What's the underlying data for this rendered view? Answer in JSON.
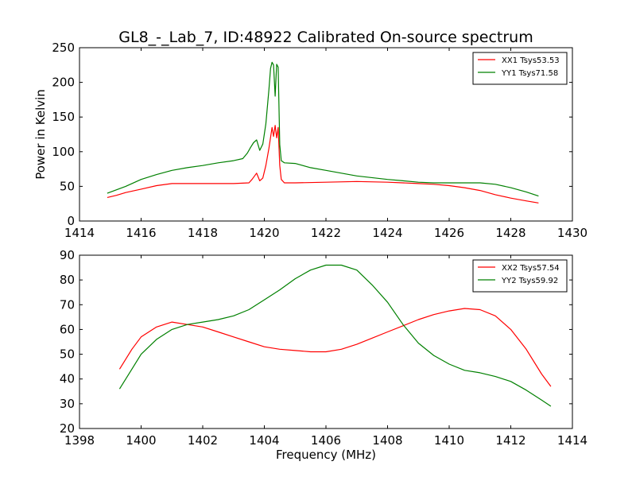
{
  "figure": {
    "title": "GL8_-_Lab_7, ID:48922 Calibrated On-source spectrum"
  },
  "chart_data": [
    {
      "type": "line",
      "title": "",
      "xlabel": "",
      "ylabel": "Power in Kelvin",
      "xlim": [
        1414,
        1430
      ],
      "ylim": [
        0,
        250
      ],
      "xticks": [
        "1414",
        "1416",
        "1418",
        "1420",
        "1422",
        "1424",
        "1426",
        "1428",
        "1430"
      ],
      "yticks": [
        "0",
        "50",
        "100",
        "150",
        "200",
        "250"
      ],
      "grid": false,
      "legend_position": "top-right",
      "series": [
        {
          "name": "XX1 Tsys53.53",
          "color": "#ff0000",
          "x": [
            1414.9,
            1415.2,
            1415.5,
            1416.0,
            1416.5,
            1417.0,
            1418.0,
            1419.0,
            1419.5,
            1419.6,
            1419.75,
            1419.85,
            1419.95,
            1420.05,
            1420.15,
            1420.25,
            1420.3,
            1420.35,
            1420.4,
            1420.45,
            1420.5,
            1420.55,
            1420.65,
            1421.0,
            1422.0,
            1423.0,
            1424.0,
            1424.5,
            1425.0,
            1425.5,
            1426.0,
            1426.5,
            1427.0,
            1427.5,
            1428.0,
            1428.5,
            1428.9
          ],
          "y": [
            34,
            37,
            41,
            46,
            51,
            54,
            54,
            54,
            55,
            60,
            69,
            58,
            62,
            80,
            105,
            135,
            122,
            138,
            120,
            135,
            80,
            60,
            55,
            55,
            56,
            57,
            56,
            55,
            54,
            53,
            51,
            48,
            44,
            38,
            33,
            29,
            26
          ]
        },
        {
          "name": "YY1 Tsys71.58",
          "color": "#008000",
          "x": [
            1414.9,
            1415.5,
            1416.0,
            1416.5,
            1417.0,
            1417.5,
            1418.0,
            1418.5,
            1419.0,
            1419.3,
            1419.45,
            1419.55,
            1419.65,
            1419.75,
            1419.85,
            1419.95,
            1420.05,
            1420.15,
            1420.2,
            1420.25,
            1420.3,
            1420.35,
            1420.4,
            1420.45,
            1420.5,
            1420.55,
            1420.65,
            1421.0,
            1421.5,
            1422.0,
            1423.0,
            1424.0,
            1424.5,
            1425.0,
            1425.5,
            1426.0,
            1426.5,
            1427.0,
            1427.5,
            1428.0,
            1428.5,
            1428.9
          ],
          "y": [
            40,
            50,
            60,
            67,
            73,
            77,
            80,
            84,
            87,
            90,
            98,
            106,
            113,
            117,
            102,
            111,
            140,
            190,
            220,
            229,
            225,
            180,
            226,
            222,
            110,
            87,
            84,
            83,
            77,
            73,
            65,
            60,
            58,
            56,
            55,
            55,
            55,
            55,
            53,
            48,
            42,
            36
          ]
        }
      ]
    },
    {
      "type": "line",
      "title": "",
      "xlabel": "Frequency (MHz)",
      "ylabel": "",
      "xlim": [
        1398,
        1414
      ],
      "ylim": [
        20,
        90
      ],
      "xticks": [
        "1398",
        "1400",
        "1402",
        "1404",
        "1406",
        "1408",
        "1410",
        "1412",
        "1414"
      ],
      "yticks": [
        "20",
        "30",
        "40",
        "50",
        "60",
        "70",
        "80",
        "90"
      ],
      "grid": false,
      "legend_position": "top-right",
      "series": [
        {
          "name": "XX2 Tsys57.54",
          "color": "#ff0000",
          "x": [
            1399.3,
            1399.7,
            1400.0,
            1400.5,
            1401.0,
            1401.5,
            1402.0,
            1402.5,
            1403.0,
            1403.5,
            1404.0,
            1404.5,
            1405.0,
            1405.5,
            1406.0,
            1406.5,
            1407.0,
            1407.5,
            1408.0,
            1408.5,
            1409.0,
            1409.5,
            1410.0,
            1410.5,
            1411.0,
            1411.5,
            1412.0,
            1412.5,
            1413.0,
            1413.3
          ],
          "y": [
            44,
            52,
            57,
            61,
            63,
            62,
            61,
            59,
            57,
            55,
            53,
            52,
            51.5,
            51,
            51,
            52,
            54,
            56.5,
            59,
            61.5,
            64,
            66,
            67.5,
            68.5,
            68,
            65.5,
            60,
            52,
            42,
            37
          ]
        },
        {
          "name": "YY2 Tsys59.92",
          "color": "#008000",
          "x": [
            1399.3,
            1399.7,
            1400.0,
            1400.5,
            1401.0,
            1401.5,
            1402.0,
            1402.5,
            1403.0,
            1403.5,
            1404.0,
            1404.5,
            1405.0,
            1405.5,
            1406.0,
            1406.5,
            1407.0,
            1407.5,
            1408.0,
            1408.5,
            1409.0,
            1409.5,
            1410.0,
            1410.5,
            1411.0,
            1411.5,
            1412.0,
            1412.5,
            1413.0,
            1413.3
          ],
          "y": [
            36,
            44,
            50,
            56,
            60,
            62,
            63,
            64,
            65.5,
            68,
            72,
            76,
            80.5,
            84,
            86,
            86,
            84,
            78,
            71,
            62,
            54.5,
            49.5,
            46,
            43.5,
            42.5,
            41,
            39,
            35.5,
            31.5,
            29
          ]
        }
      ]
    }
  ]
}
